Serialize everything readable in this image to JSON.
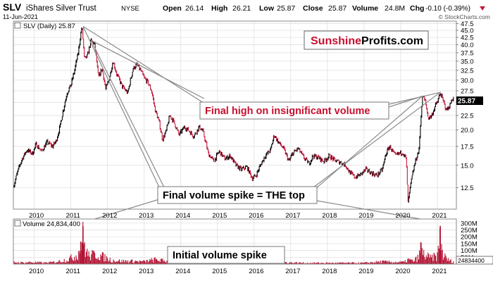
{
  "header": {
    "ticker": "SLV",
    "name": "iShares Silver Trust",
    "exchange": "NYSE",
    "date": "11-Jun-2021",
    "open_label": "Open",
    "open": "26.14",
    "high_label": "High",
    "high": "26.21",
    "low_label": "Low",
    "low": "25.87",
    "close_label": "Close",
    "close": "25.87",
    "volume_label": "Volume",
    "volume": "24.8M",
    "chg_label": "Chg",
    "chg": "-0.10 (-0.39%)",
    "copyright": "© StockCharts.com"
  },
  "colors": {
    "up": "#000000",
    "down": "#c4183c",
    "volume": "#b01030",
    "grid": "#dcdcdc",
    "annotation_text": "#c8102e",
    "last_price_box": "#000000"
  },
  "brand": {
    "part1": "Sunshine",
    "part2": "Profits.com"
  },
  "annotations": {
    "final_high": "Final high on insignificant volume",
    "final_volume": "Final volume spike = THE top",
    "initial_volume": "Initial volume spike"
  },
  "chart_data": [
    {
      "type": "candlestick",
      "legend": "SLV (Daily) 25.87",
      "last_value": "25.87",
      "x_ticks": [
        "2010",
        "2011",
        "2012",
        "2013",
        "2014",
        "2015",
        "2016",
        "2017",
        "2018",
        "2019",
        "2020",
        "2021"
      ],
      "y_ticks": [
        "12.5",
        "15.0",
        "17.5",
        "20.0",
        "22.5",
        "25.0",
        "27.5",
        "30.0",
        "32.5",
        "35.0",
        "37.5",
        "40.0",
        "42.5",
        "45.0",
        "47.5"
      ],
      "ylim": [
        10.5,
        48.5
      ],
      "scale": "log",
      "grid": true,
      "series": [
        {
          "x": 2009.45,
          "y": 12.8
        },
        {
          "x": 2009.55,
          "y": 14.3
        },
        {
          "x": 2009.65,
          "y": 15.6
        },
        {
          "x": 2009.8,
          "y": 17.0
        },
        {
          "x": 2009.95,
          "y": 16.5
        },
        {
          "x": 2010.05,
          "y": 17.8
        },
        {
          "x": 2010.2,
          "y": 16.8
        },
        {
          "x": 2010.35,
          "y": 18.1
        },
        {
          "x": 2010.5,
          "y": 17.5
        },
        {
          "x": 2010.6,
          "y": 18.3
        },
        {
          "x": 2010.7,
          "y": 20.5
        },
        {
          "x": 2010.8,
          "y": 23.8
        },
        {
          "x": 2010.9,
          "y": 27.2
        },
        {
          "x": 2011.0,
          "y": 28.8
        },
        {
          "x": 2011.1,
          "y": 32.5
        },
        {
          "x": 2011.2,
          "y": 37.5
        },
        {
          "x": 2011.3,
          "y": 46.5
        },
        {
          "x": 2011.37,
          "y": 35.5
        },
        {
          "x": 2011.45,
          "y": 36.5
        },
        {
          "x": 2011.55,
          "y": 41.5
        },
        {
          "x": 2011.65,
          "y": 40.0
        },
        {
          "x": 2011.75,
          "y": 30.5
        },
        {
          "x": 2011.85,
          "y": 33.0
        },
        {
          "x": 2011.95,
          "y": 27.8
        },
        {
          "x": 2012.05,
          "y": 30.5
        },
        {
          "x": 2012.15,
          "y": 35.0
        },
        {
          "x": 2012.25,
          "y": 31.5
        },
        {
          "x": 2012.4,
          "y": 28.5
        },
        {
          "x": 2012.55,
          "y": 27.0
        },
        {
          "x": 2012.7,
          "y": 33.0
        },
        {
          "x": 2012.8,
          "y": 34.0
        },
        {
          "x": 2012.9,
          "y": 32.5
        },
        {
          "x": 2013.0,
          "y": 30.5
        },
        {
          "x": 2013.1,
          "y": 29.5
        },
        {
          "x": 2013.2,
          "y": 27.5
        },
        {
          "x": 2013.3,
          "y": 23.5
        },
        {
          "x": 2013.4,
          "y": 21.5
        },
        {
          "x": 2013.5,
          "y": 18.5
        },
        {
          "x": 2013.6,
          "y": 19.8
        },
        {
          "x": 2013.7,
          "y": 22.5
        },
        {
          "x": 2013.8,
          "y": 21.5
        },
        {
          "x": 2013.95,
          "y": 19.2
        },
        {
          "x": 2014.1,
          "y": 20.5
        },
        {
          "x": 2014.2,
          "y": 20.0
        },
        {
          "x": 2014.35,
          "y": 19.0
        },
        {
          "x": 2014.5,
          "y": 20.5
        },
        {
          "x": 2014.6,
          "y": 19.8
        },
        {
          "x": 2014.75,
          "y": 16.5
        },
        {
          "x": 2014.9,
          "y": 15.5
        },
        {
          "x": 2015.05,
          "y": 16.8
        },
        {
          "x": 2015.2,
          "y": 15.8
        },
        {
          "x": 2015.35,
          "y": 16.2
        },
        {
          "x": 2015.5,
          "y": 15.0
        },
        {
          "x": 2015.65,
          "y": 14.5
        },
        {
          "x": 2015.8,
          "y": 14.8
        },
        {
          "x": 2015.95,
          "y": 13.5
        },
        {
          "x": 2016.05,
          "y": 13.8
        },
        {
          "x": 2016.15,
          "y": 14.8
        },
        {
          "x": 2016.3,
          "y": 16.2
        },
        {
          "x": 2016.45,
          "y": 17.0
        },
        {
          "x": 2016.55,
          "y": 19.2
        },
        {
          "x": 2016.65,
          "y": 18.2
        },
        {
          "x": 2016.8,
          "y": 17.2
        },
        {
          "x": 2016.95,
          "y": 15.5
        },
        {
          "x": 2017.05,
          "y": 16.5
        },
        {
          "x": 2017.2,
          "y": 17.2
        },
        {
          "x": 2017.35,
          "y": 16.0
        },
        {
          "x": 2017.5,
          "y": 15.2
        },
        {
          "x": 2017.6,
          "y": 16.2
        },
        {
          "x": 2017.75,
          "y": 16.0
        },
        {
          "x": 2017.9,
          "y": 15.5
        },
        {
          "x": 2018.05,
          "y": 16.2
        },
        {
          "x": 2018.2,
          "y": 15.6
        },
        {
          "x": 2018.35,
          "y": 15.4
        },
        {
          "x": 2018.5,
          "y": 15.0
        },
        {
          "x": 2018.6,
          "y": 14.2
        },
        {
          "x": 2018.75,
          "y": 13.6
        },
        {
          "x": 2018.9,
          "y": 13.9
        },
        {
          "x": 2019.05,
          "y": 14.5
        },
        {
          "x": 2019.2,
          "y": 14.1
        },
        {
          "x": 2019.35,
          "y": 13.8
        },
        {
          "x": 2019.5,
          "y": 14.5
        },
        {
          "x": 2019.6,
          "y": 16.5
        },
        {
          "x": 2019.7,
          "y": 17.5
        },
        {
          "x": 2019.85,
          "y": 16.2
        },
        {
          "x": 2019.95,
          "y": 16.5
        },
        {
          "x": 2020.05,
          "y": 16.7
        },
        {
          "x": 2020.15,
          "y": 15.8
        },
        {
          "x": 2020.2,
          "y": 11.0
        },
        {
          "x": 2020.28,
          "y": 13.0
        },
        {
          "x": 2020.4,
          "y": 15.5
        },
        {
          "x": 2020.5,
          "y": 17.0
        },
        {
          "x": 2020.55,
          "y": 22.0
        },
        {
          "x": 2020.6,
          "y": 26.5
        },
        {
          "x": 2020.68,
          "y": 25.0
        },
        {
          "x": 2020.75,
          "y": 22.0
        },
        {
          "x": 2020.85,
          "y": 22.5
        },
        {
          "x": 2020.95,
          "y": 24.5
        },
        {
          "x": 2021.0,
          "y": 25.0
        },
        {
          "x": 2021.08,
          "y": 27.0
        },
        {
          "x": 2021.15,
          "y": 25.5
        },
        {
          "x": 2021.25,
          "y": 23.5
        },
        {
          "x": 2021.35,
          "y": 24.5
        },
        {
          "x": 2021.4,
          "y": 25.8
        },
        {
          "x": 2021.44,
          "y": 25.87
        }
      ]
    },
    {
      "type": "bar",
      "legend": "Volume 24,834,400",
      "last_value": "24834400",
      "x_ticks": [
        "2010",
        "2011",
        "2012",
        "2013",
        "2014",
        "2015",
        "2016",
        "2017",
        "2018",
        "2019",
        "2020",
        "2021"
      ],
      "y_ticks": [
        "50M",
        "100M",
        "150M",
        "200M",
        "250M",
        "300M"
      ],
      "ylim": [
        0,
        330
      ],
      "unit": "M",
      "grid": true,
      "series": [
        {
          "x": 2009.5,
          "y": 18
        },
        {
          "x": 2009.7,
          "y": 15
        },
        {
          "x": 2009.9,
          "y": 20
        },
        {
          "x": 2010.1,
          "y": 16
        },
        {
          "x": 2010.3,
          "y": 14
        },
        {
          "x": 2010.5,
          "y": 18
        },
        {
          "x": 2010.7,
          "y": 30
        },
        {
          "x": 2010.9,
          "y": 45
        },
        {
          "x": 2011.0,
          "y": 60
        },
        {
          "x": 2011.1,
          "y": 75
        },
        {
          "x": 2011.2,
          "y": 110
        },
        {
          "x": 2011.27,
          "y": 165
        },
        {
          "x": 2011.33,
          "y": 278
        },
        {
          "x": 2011.4,
          "y": 140
        },
        {
          "x": 2011.5,
          "y": 80
        },
        {
          "x": 2011.7,
          "y": 100
        },
        {
          "x": 2011.9,
          "y": 70
        },
        {
          "x": 2012.1,
          "y": 40
        },
        {
          "x": 2012.4,
          "y": 30
        },
        {
          "x": 2012.7,
          "y": 30
        },
        {
          "x": 2013.0,
          "y": 25
        },
        {
          "x": 2013.3,
          "y": 45
        },
        {
          "x": 2013.6,
          "y": 30
        },
        {
          "x": 2014.0,
          "y": 18
        },
        {
          "x": 2014.5,
          "y": 15
        },
        {
          "x": 2015.0,
          "y": 15
        },
        {
          "x": 2015.5,
          "y": 14
        },
        {
          "x": 2016.0,
          "y": 15
        },
        {
          "x": 2016.5,
          "y": 25
        },
        {
          "x": 2017.0,
          "y": 15
        },
        {
          "x": 2017.5,
          "y": 12
        },
        {
          "x": 2018.0,
          "y": 12
        },
        {
          "x": 2018.5,
          "y": 12
        },
        {
          "x": 2019.0,
          "y": 12
        },
        {
          "x": 2019.5,
          "y": 25
        },
        {
          "x": 2019.8,
          "y": 20
        },
        {
          "x": 2020.1,
          "y": 20
        },
        {
          "x": 2020.2,
          "y": 45
        },
        {
          "x": 2020.35,
          "y": 30
        },
        {
          "x": 2020.5,
          "y": 70
        },
        {
          "x": 2020.55,
          "y": 160
        },
        {
          "x": 2020.62,
          "y": 100
        },
        {
          "x": 2020.8,
          "y": 60
        },
        {
          "x": 2021.0,
          "y": 80
        },
        {
          "x": 2021.08,
          "y": 280
        },
        {
          "x": 2021.15,
          "y": 90
        },
        {
          "x": 2021.3,
          "y": 40
        },
        {
          "x": 2021.44,
          "y": 25
        }
      ]
    }
  ]
}
